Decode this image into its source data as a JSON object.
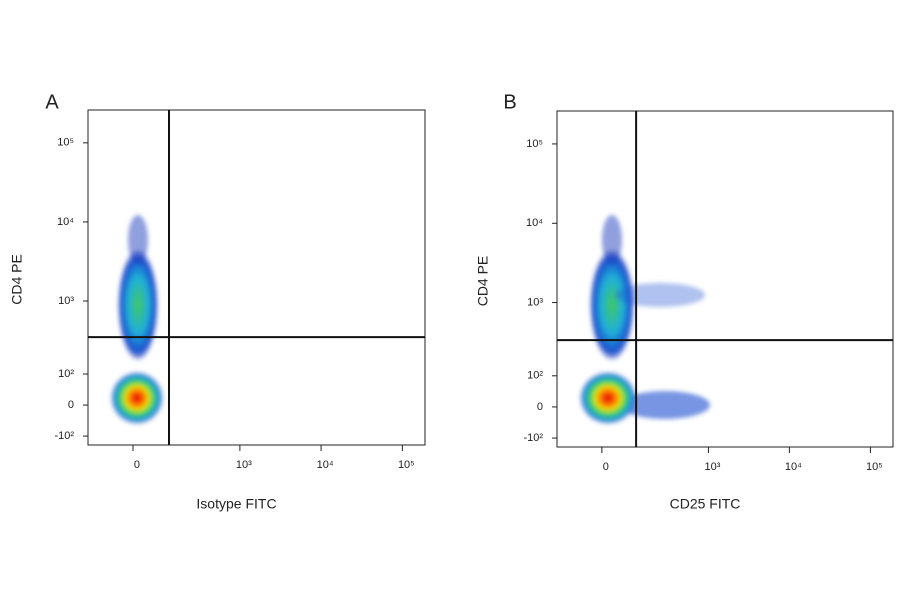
{
  "chart_data": [
    {
      "type": "scatter",
      "title": "A",
      "x_label": "Isotype FITC",
      "y_label": "CD4 PE",
      "xlim": [
        -160,
        190000
      ],
      "ylim": [
        -140,
        260000
      ],
      "xticks": [
        0,
        {
          "value": 1000,
          "label": "10³"
        },
        {
          "value": 10000,
          "label": "10⁴"
        },
        {
          "value": 100000,
          "label": "10⁵"
        }
      ],
      "yticks": [
        {
          "value": -100,
          "label": "-10²"
        },
        0,
        {
          "value": 100,
          "label": "10²"
        },
        {
          "value": 1000,
          "label": "10³"
        },
        {
          "value": 10000,
          "label": "10⁴"
        },
        {
          "value": 100000,
          "label": "10⁵"
        }
      ],
      "quadrant_gate": {
        "x": 117,
        "y": 344
      }
    },
    {
      "type": "scatter",
      "title": "B",
      "x_label": "CD25 FITC",
      "y_label": "CD4 PE",
      "xlim": [
        -160,
        190000
      ],
      "ylim": [
        -140,
        260000
      ],
      "xticks": [
        0,
        {
          "value": 1000,
          "label": "10³"
        },
        {
          "value": 10000,
          "label": "10⁴"
        },
        {
          "value": 100000,
          "label": "10⁵"
        }
      ],
      "yticks": [
        {
          "value": -100,
          "label": "-10²"
        },
        0,
        {
          "value": 100,
          "label": "10²"
        },
        {
          "value": 1000,
          "label": "10³"
        },
        {
          "value": 10000,
          "label": "10⁴"
        },
        {
          "value": 100000,
          "label": "10⁵"
        }
      ],
      "quadrant_gate": {
        "x": 110,
        "y": 330
      }
    }
  ]
}
